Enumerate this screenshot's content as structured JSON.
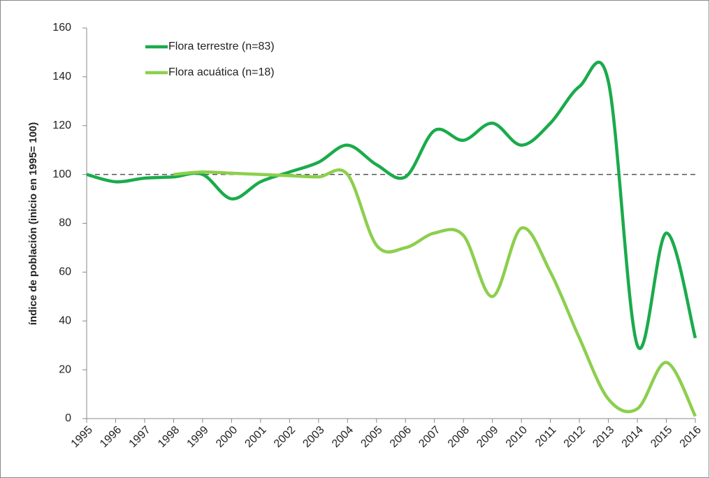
{
  "chart_data": {
    "type": "line",
    "y_label": "índice de población  (inicio en 1995= 100)",
    "categories": [
      "1995",
      "1996",
      "1997",
      "1998",
      "1999",
      "2000",
      "2001",
      "2002",
      "2003",
      "2004",
      "2005",
      "2006",
      "2007",
      "2008",
      "2009",
      "2010",
      "2011",
      "2012",
      "2013",
      "2014",
      "2015",
      "2016"
    ],
    "series": [
      {
        "name": "Flora terrestre  (n=83)",
        "color": "#1aab4b",
        "values": [
          100,
          97,
          98.5,
          99,
          100,
          90,
          97,
          101,
          105,
          112,
          104,
          99,
          118,
          114,
          121,
          112,
          121,
          136,
          138,
          30,
          76,
          33
        ]
      },
      {
        "name": "Flora acuática (n=18)",
        "color": "#8ccf4d",
        "values": [
          null,
          null,
          null,
          100,
          101,
          100.5,
          100,
          99.5,
          99,
          100,
          71,
          70,
          76,
          75,
          50,
          78,
          60,
          33,
          8,
          4,
          23,
          1
        ]
      }
    ],
    "ylim": [
      0,
      160
    ],
    "yticks": [
      0,
      20,
      40,
      60,
      80,
      100,
      120,
      140,
      160
    ],
    "reference_line": 100,
    "smooth": true
  }
}
